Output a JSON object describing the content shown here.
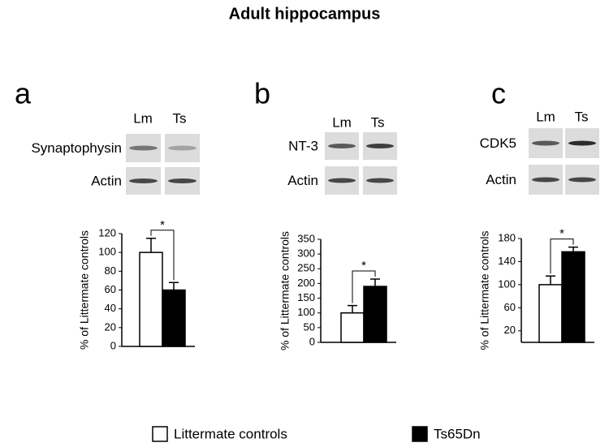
{
  "title": "Adult hippocampus",
  "legend": [
    {
      "name": "Littermate controls",
      "color": "#ffffff"
    },
    {
      "name": "Ts65Dn",
      "color": "#000000"
    }
  ],
  "chart_data": [
    {
      "type": "bar",
      "label": "a",
      "lanes": [
        "Lm",
        "Ts"
      ],
      "blots": [
        "Synaptophysin",
        "Actin"
      ],
      "ylabel": "% of Littermate controls",
      "ylim": [
        0,
        120
      ],
      "yticks": [
        0,
        20,
        40,
        60,
        80,
        100,
        120
      ],
      "categories": [
        null
      ],
      "series": [
        {
          "color": "#ffffff",
          "values": [
            100
          ],
          "errors": [
            15
          ]
        },
        {
          "color": "#000000",
          "values": [
            60
          ],
          "errors": [
            8
          ]
        }
      ],
      "annotation": "*"
    },
    {
      "type": "bar",
      "label": "b",
      "lanes": [
        "Lm",
        "Ts"
      ],
      "blots": [
        "NT-3",
        "Actin"
      ],
      "ylabel": "% of Littermate controls",
      "ylim": [
        0,
        350
      ],
      "yticks": [
        0,
        50,
        100,
        150,
        200,
        250,
        300,
        350
      ],
      "categories": [
        null
      ],
      "series": [
        {
          "color": "#ffffff",
          "values": [
            100
          ],
          "errors": [
            25
          ]
        },
        {
          "color": "#000000",
          "values": [
            190
          ],
          "errors": [
            25
          ]
        }
      ],
      "annotation": "*"
    },
    {
      "type": "bar",
      "label": "c",
      "lanes": [
        "Lm",
        "Ts"
      ],
      "blots": [
        "CDK5",
        "Actin"
      ],
      "ylabel": "% of Littermate controls",
      "ylim": [
        0,
        180
      ],
      "yticks": [
        20,
        60,
        100,
        140,
        180
      ],
      "categories": [
        null
      ],
      "series": [
        {
          "color": "#ffffff",
          "values": [
            100
          ],
          "errors": [
            15
          ]
        },
        {
          "color": "#000000",
          "values": [
            157
          ],
          "errors": [
            8
          ]
        }
      ],
      "annotation": "*"
    }
  ]
}
